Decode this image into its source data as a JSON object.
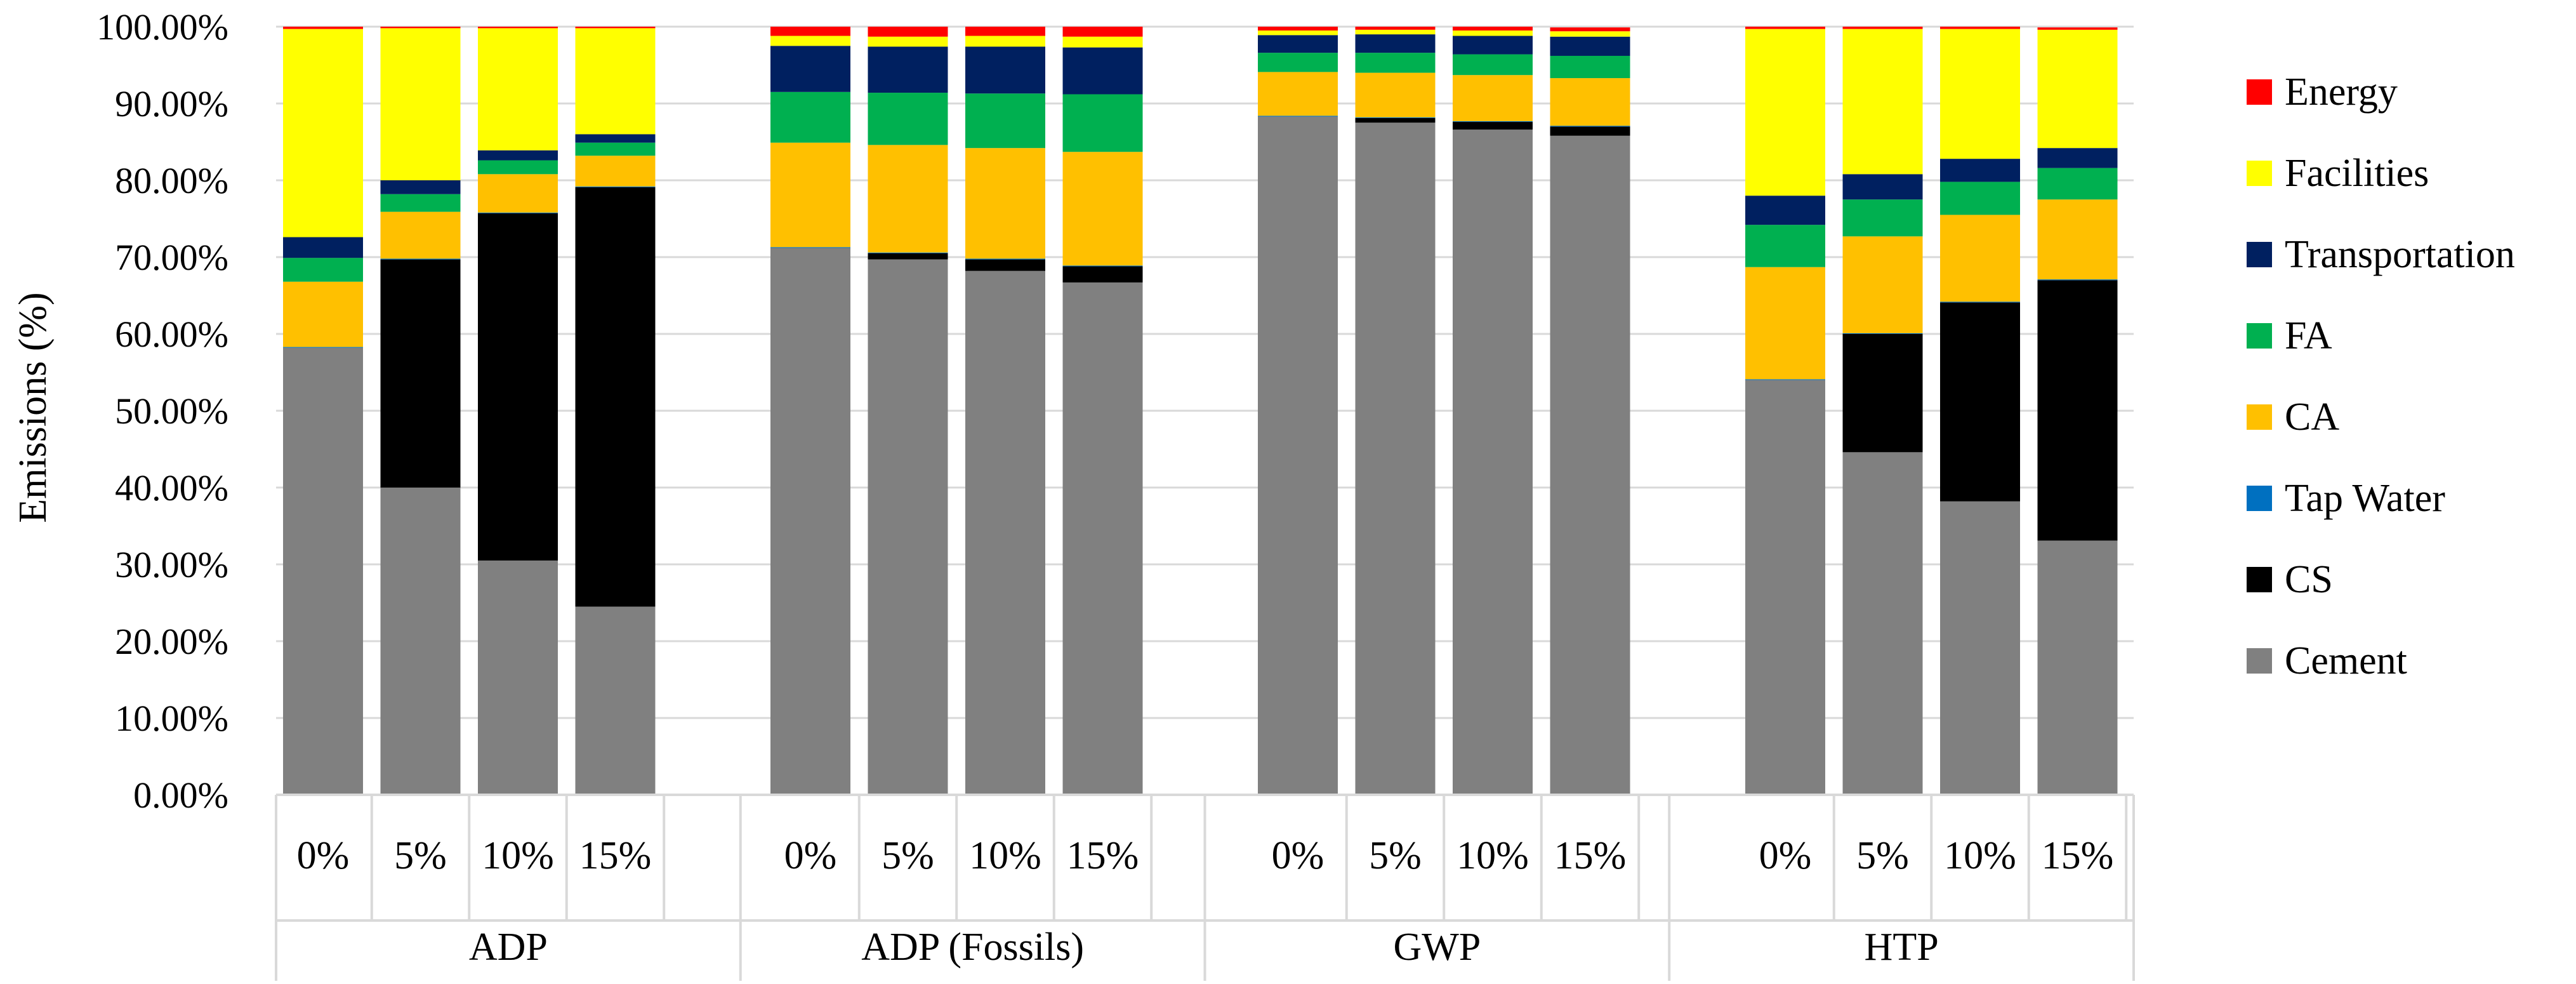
{
  "chart_data": {
    "type": "bar",
    "stacked": true,
    "ylabel": "Emissions (%)",
    "ylim": [
      0,
      100
    ],
    "yticks": [
      "0.00%",
      "10.00%",
      "20.00%",
      "30.00%",
      "40.00%",
      "50.00%",
      "60.00%",
      "70.00%",
      "80.00%",
      "90.00%",
      "100.00%"
    ],
    "legend_position": "right",
    "groups": [
      {
        "name": "ADP",
        "categories": [
          "0%",
          "5%",
          "10%",
          "15%"
        ]
      },
      {
        "name": "ADP (Fossils)",
        "categories": [
          "0%",
          "5%",
          "10%",
          "15%"
        ]
      },
      {
        "name": "GWP",
        "categories": [
          "0%",
          "5%",
          "10%",
          "15%"
        ]
      },
      {
        "name": "HTP",
        "categories": [
          "0%",
          "5%",
          "10%",
          "15%"
        ]
      }
    ],
    "series": [
      {
        "name": "Cement",
        "color": "#808080",
        "values": [
          58.2,
          40.0,
          30.5,
          24.5,
          71.2,
          69.7,
          68.2,
          66.7,
          88.3,
          87.5,
          86.6,
          85.8,
          54.0,
          44.6,
          38.2,
          33.1
        ]
      },
      {
        "name": "CS",
        "color": "#000000",
        "values": [
          0.0,
          29.7,
          45.2,
          54.6,
          0.0,
          0.8,
          1.5,
          2.1,
          0.0,
          0.6,
          1.0,
          1.2,
          0.0,
          15.4,
          25.9,
          33.9
        ]
      },
      {
        "name": "Tap Water",
        "color": "#0070C0",
        "values": [
          0.1,
          0.1,
          0.1,
          0.1,
          0.1,
          0.1,
          0.1,
          0.1,
          0.1,
          0.1,
          0.1,
          0.1,
          0.1,
          0.1,
          0.1,
          0.1
        ]
      },
      {
        "name": "CA",
        "color": "#FFC000",
        "values": [
          8.5,
          6.1,
          5.0,
          4.0,
          13.6,
          14.0,
          14.4,
          14.8,
          5.7,
          5.8,
          6.0,
          6.2,
          14.6,
          12.6,
          11.3,
          10.4
        ]
      },
      {
        "name": "FA",
        "color": "#00B050",
        "values": [
          3.1,
          2.3,
          1.8,
          1.7,
          6.6,
          6.8,
          7.1,
          7.5,
          2.5,
          2.6,
          2.7,
          2.9,
          5.5,
          4.8,
          4.3,
          4.1
        ]
      },
      {
        "name": "Transportation",
        "color": "#002060",
        "values": [
          2.7,
          1.8,
          1.3,
          1.1,
          6.0,
          6.0,
          6.1,
          6.1,
          2.3,
          2.4,
          2.4,
          2.5,
          3.8,
          3.3,
          3.0,
          2.6
        ]
      },
      {
        "name": "Facilities",
        "color": "#FFFF00",
        "values": [
          27.1,
          19.8,
          15.9,
          13.8,
          1.3,
          1.3,
          1.4,
          1.4,
          0.6,
          0.6,
          0.7,
          0.7,
          21.7,
          18.9,
          16.9,
          15.4
        ]
      },
      {
        "name": "Energy",
        "color": "#FF0000",
        "values": [
          0.3,
          0.2,
          0.2,
          0.2,
          1.2,
          1.3,
          1.2,
          1.3,
          0.5,
          0.4,
          0.5,
          0.5,
          0.3,
          0.3,
          0.3,
          0.3
        ]
      }
    ],
    "legend_order": [
      "Energy",
      "Facilities",
      "Transportation",
      "FA",
      "CA",
      "Tap Water",
      "CS",
      "Cement"
    ]
  }
}
